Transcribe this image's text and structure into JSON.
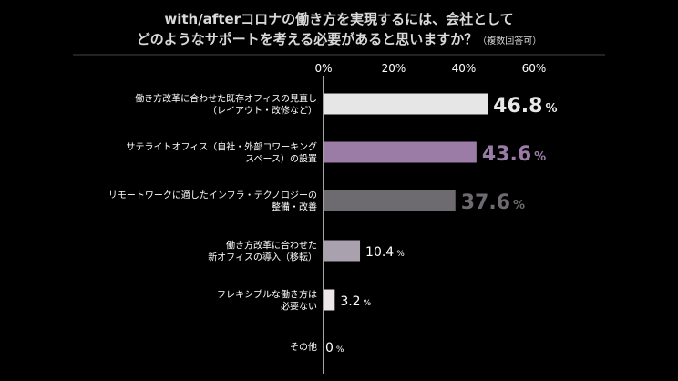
{
  "title": {
    "line1": "with/afterコロナの働き方を実現するには、会社として",
    "line2": "どのようなサポートを考える必要があると思いますか？",
    "note": "（複数回答可）"
  },
  "colors": {
    "background": "#000000",
    "axis": "#d9d9d9",
    "gridline": "#444444",
    "text": "#ffffff"
  },
  "chart_data": {
    "type": "bar",
    "orientation": "horizontal",
    "x_ticks": [
      "0%",
      "20%",
      "40%",
      "60%"
    ],
    "xlim": [
      0,
      70
    ],
    "unit": "%",
    "categories": [
      [
        "働き方改革に合わせた既存オフィスの見直し",
        "（レイアウト・改修など）"
      ],
      [
        "サテライトオフィス（自社・外部コワーキング",
        "スペース）の設置"
      ],
      [
        "リモートワークに適したインフラ・テクノロジーの",
        "整備・改善"
      ],
      [
        "働き方改革に合わせた",
        "新オフィスの導入（移転）"
      ],
      [
        "フレキシブルな働き方は",
        "必要ない"
      ],
      [
        "その他"
      ]
    ],
    "values": [
      46.8,
      43.6,
      37.6,
      10.4,
      3.2,
      0
    ],
    "value_labels": [
      "46.8",
      "43.6",
      "37.6",
      "10.4",
      "3.2",
      "0"
    ],
    "bar_colors": [
      "#e6e6e6",
      "#9b7ca6",
      "#6d6a70",
      "#a9a1ad",
      "#ece6e8",
      "#cccccc"
    ],
    "label_colors": [
      "#e8e8e8",
      "#9b7ca6",
      "#6d6a70",
      "#ffffff",
      "#ffffff",
      "#ffffff"
    ],
    "label_emphasis": [
      true,
      true,
      true,
      false,
      false,
      false
    ]
  }
}
